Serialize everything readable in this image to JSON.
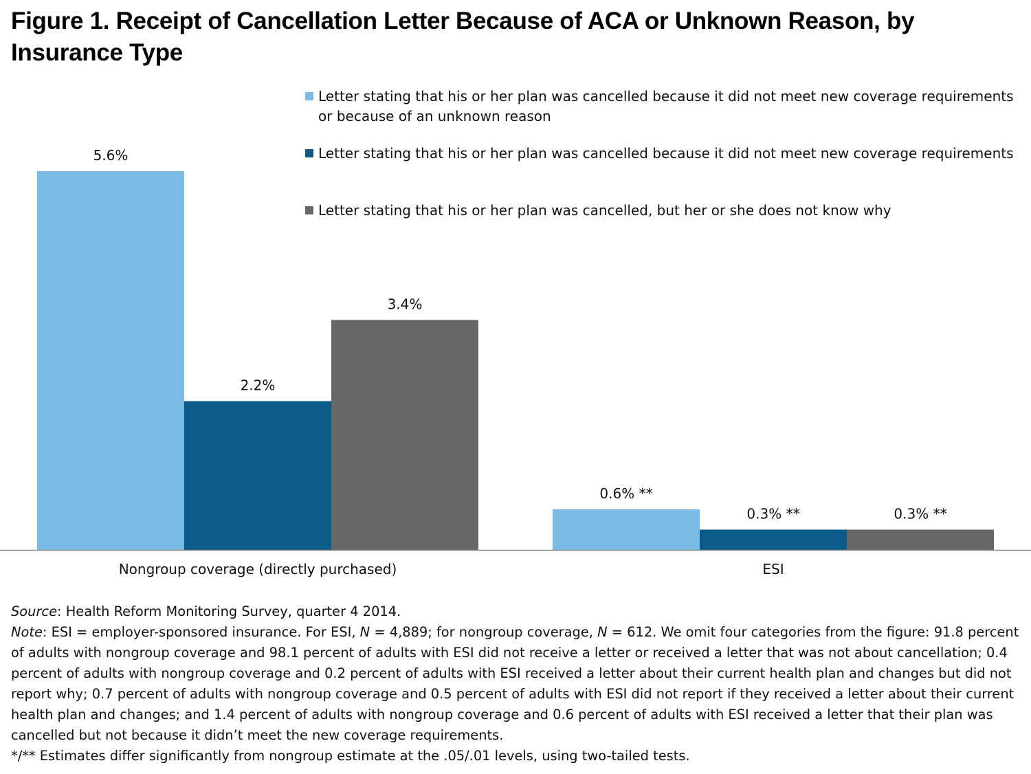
{
  "title": "Figure 1. Receipt of Cancellation Letter Because of ACA or Unknown Reason, by Insurance Type",
  "chart_data": {
    "type": "bar",
    "title": "Figure 1. Receipt of Cancellation Letter Because of ACA or Unknown Reason, by Insurance Type",
    "categories": [
      "Nongroup coverage (directly purchased)",
      "ESI"
    ],
    "series": [
      {
        "name": "Letter stating that his or her plan was cancelled because it did not meet new coverage requirements or because of an unknown reason",
        "color": "#79bbe5",
        "values": [
          5.6,
          0.6
        ],
        "labels": [
          "5.6%",
          "0.6% **"
        ]
      },
      {
        "name": "Letter stating that his or her plan was cancelled because it did not meet new coverage requirements",
        "color": "#0c5a8a",
        "values": [
          2.2,
          0.3
        ],
        "labels": [
          "2.2%",
          "0.3% **"
        ]
      },
      {
        "name": "Letter stating that his or her plan was cancelled, but her or she does not know why",
        "color": "#666769",
        "values": [
          3.4,
          0.3
        ],
        "labels": [
          "3.4%",
          "0.3% **"
        ]
      }
    ],
    "ylim": [
      0,
      5.6
    ],
    "grid": false,
    "legend_position": "top-right",
    "xlabel": "",
    "ylabel": ""
  },
  "source_label": "Source",
  "source_text": ": Health Reform Monitoring Survey, quarter 4 2014.",
  "note_label": "Note",
  "note_part1": ": ESI = employer-sponsored insurance. For ESI, ",
  "note_n1": "N",
  "note_part2": " = 4,889; for nongroup coverage, ",
  "note_n2": "N",
  "note_part3": " = 612. We omit four categories from the figure: 91.8 percent of adults with nongroup coverage and 98.1 percent of adults with ESI did not receive a letter or received a letter that was not about cancellation; 0.4 percent of adults with nongroup coverage and 0.2 percent of adults with ESI received a letter about their current health plan and changes but did not report why; 0.7 percent of adults with nongroup coverage and 0.5 percent of adults with ESI did not report if they received a letter about their current health plan and changes; and 1.4 percent of adults with nongroup coverage and 0.6 percent of adults with ESI received a letter that their plan was cancelled but not because it didn’t meet the new coverage requirements.",
  "significance_note": "*/** Estimates differ significantly from nongroup estimate at the .05/.01 levels, using two-tailed tests."
}
